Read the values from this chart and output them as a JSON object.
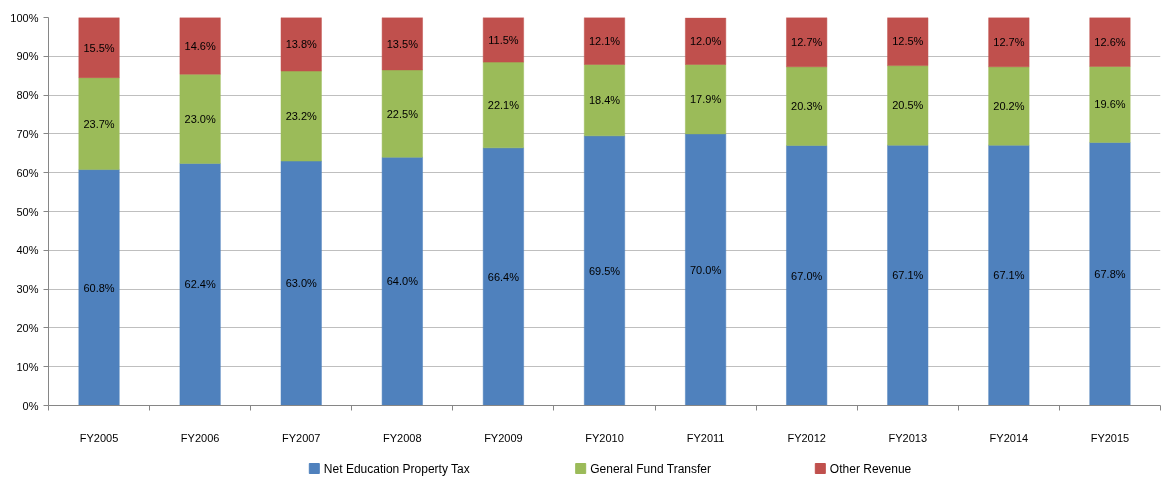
{
  "chart_data": {
    "type": "bar",
    "stacked": true,
    "categories": [
      "FY2005",
      "FY2006",
      "FY2007",
      "FY2008",
      "FY2009",
      "FY2010",
      "FY2011",
      "FY2012",
      "FY2013",
      "FY2014",
      "FY2015"
    ],
    "series": [
      {
        "name": "Net Education Property Tax",
        "color": "#4f81bd",
        "values": [
          60.8,
          62.4,
          63.0,
          64.0,
          66.4,
          69.5,
          70.0,
          67.0,
          67.1,
          67.1,
          67.8
        ],
        "value_labels": [
          "60.8%",
          "62.4%",
          "63.0%",
          "64.0%",
          "66.4%",
          "69.5%",
          "70.0%",
          "67.0%",
          "67.1%",
          "67.1%",
          "67.8%"
        ]
      },
      {
        "name": "General Fund Transfer",
        "color": "#9bbb59",
        "values": [
          23.7,
          23.0,
          23.2,
          22.5,
          22.1,
          18.4,
          17.9,
          20.3,
          20.5,
          20.2,
          19.6
        ],
        "value_labels": [
          "23.7%",
          "23.0%",
          "23.2%",
          "22.5%",
          "22.1%",
          "18.4%",
          "17.9%",
          "20.3%",
          "20.5%",
          "20.2%",
          "19.6%"
        ]
      },
      {
        "name": "Other Revenue",
        "color": "#c0504d",
        "values": [
          15.5,
          14.6,
          13.8,
          13.5,
          11.5,
          12.1,
          12.0,
          12.7,
          12.5,
          12.7,
          12.6
        ],
        "value_labels": [
          "15.5%",
          "14.6%",
          "13.8%",
          "13.5%",
          "11.5%",
          "12.1%",
          "12.0%",
          "12.7%",
          "12.5%",
          "12.7%",
          "12.6%"
        ]
      }
    ],
    "ylim": [
      0,
      100
    ],
    "yticks": [
      {
        "value": 0,
        "label": "0%"
      },
      {
        "value": 10,
        "label": "10%"
      },
      {
        "value": 20,
        "label": "20%"
      },
      {
        "value": 30,
        "label": "30%"
      },
      {
        "value": 40,
        "label": "40%"
      },
      {
        "value": 50,
        "label": "50%"
      },
      {
        "value": 60,
        "label": "60%"
      },
      {
        "value": 70,
        "label": "70%"
      },
      {
        "value": 80,
        "label": "80%"
      },
      {
        "value": 90,
        "label": "90%"
      },
      {
        "value": 100,
        "label": "100%"
      }
    ],
    "grid": "y",
    "legend": "bottom"
  }
}
